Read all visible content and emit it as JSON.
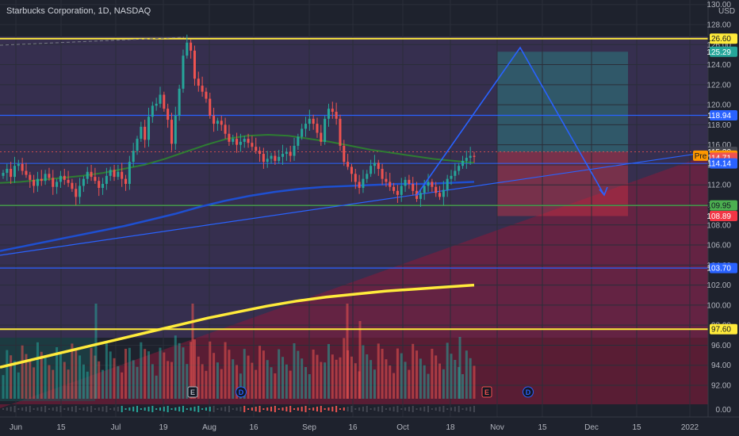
{
  "header": {
    "title": "Starbucks Corporation, 1D, NASDAQ",
    "currency": "USD"
  },
  "colors": {
    "background": "#1e222d",
    "up_candle": "#26a69a",
    "down_candle": "#ef5350",
    "ma_short": "#2e7d32",
    "ma_mid": "#1e4fd1",
    "ma_long": "#ffeb3b",
    "horizontal_blue": "#2962ff",
    "horizontal_yellow": "#ffeb3b",
    "horizontal_green": "#4caf50",
    "pattern_line": "#2962ff",
    "target_zone": "#26a69a",
    "stop_zone": "#f23645"
  },
  "chart_data": {
    "type": "candlestick",
    "symbol": "Starbucks Corporation",
    "interval": "1D",
    "exchange": "NASDAQ",
    "currency": "USD",
    "y_range": [
      90,
      130
    ],
    "x_ticks": [
      "Jun",
      "15",
      "Jul",
      "19",
      "Aug",
      "16",
      "Sep",
      "16",
      "Oct",
      "18",
      "Nov",
      "15",
      "Dec",
      "15",
      "2022"
    ],
    "y_ticks": [
      92,
      94,
      96,
      98,
      100,
      102,
      104,
      106,
      108,
      110,
      112,
      114,
      116,
      118,
      120,
      122,
      124,
      126,
      128,
      130
    ],
    "horizontal_levels": [
      {
        "value": 126.6,
        "label": "126.60",
        "color": "#ffeb3b"
      },
      {
        "value": 118.94,
        "label": "118.94",
        "color": "#2962ff"
      },
      {
        "value": 109.95,
        "label": "109.95",
        "color": "#4caf50"
      },
      {
        "value": 103.7,
        "label": "103.70",
        "color": "#2962ff"
      },
      {
        "value": 97.6,
        "label": "97.60",
        "color": "#ffeb3b"
      }
    ],
    "price_badges": [
      {
        "value": 125.29,
        "label": "125.29",
        "color": "#26a69a"
      },
      {
        "value": 115.3,
        "label": "115.30",
        "color": "#434651"
      },
      {
        "value": 114.92,
        "label": "114.92",
        "color": "#ff9800",
        "prefix": "Pre"
      },
      {
        "value": 114.71,
        "label": "114.71",
        "color": "#ef5350"
      },
      {
        "value": 114.14,
        "label": "114.14",
        "color": "#2962ff"
      },
      {
        "value": 108.89,
        "label": "108.89",
        "color": "#f23645"
      }
    ],
    "position_zone": {
      "entry": 115.3,
      "target": 125.29,
      "stop": 108.89
    },
    "pattern_points": [
      {
        "date_label": "Oct",
        "price": 110.5
      },
      {
        "date_label": "Nov",
        "price": 125.2
      },
      {
        "date_label": "Dec",
        "price": 110.8
      }
    ],
    "event_markers": [
      {
        "label": "E",
        "type": "earnings"
      },
      {
        "label": "D",
        "type": "dividend"
      },
      {
        "label": "E",
        "type": "earnings"
      },
      {
        "label": "D",
        "type": "dividend"
      }
    ],
    "oscillator_level": "0.00",
    "series": [
      {
        "name": "Price",
        "close": [
          113.2,
          113.6,
          112.8,
          113.9,
          114.1,
          113.4,
          113.0,
          112.5,
          111.9,
          112.6,
          112.4,
          113.1,
          112.7,
          111.8,
          112.3,
          112.9,
          112.5,
          112.2,
          111.6,
          110.8,
          111.9,
          112.6,
          113.3,
          112.8,
          112.4,
          111.7,
          112.1,
          112.9,
          113.5,
          112.8,
          113.3,
          112.6,
          112.1,
          114.3,
          115.4,
          116.6,
          117.8,
          116.5,
          118.8,
          119.9,
          120.1,
          121.0,
          119.6,
          118.5,
          116.1,
          118.9,
          121.6,
          124.9,
          126.2,
          125.4,
          122.6,
          121.9,
          121.3,
          120.6,
          118.9,
          118.1,
          118.4,
          118.0,
          117.1,
          116.3,
          116.6,
          116.0,
          116.3,
          116.6,
          116.2,
          115.8,
          115.4,
          115.1,
          114.3,
          114.6,
          114.9,
          114.4,
          114.8,
          115.1,
          115.3,
          114.9,
          115.9,
          116.8,
          117.6,
          118.1,
          118.6,
          118.1,
          117.2,
          116.3,
          118.6,
          119.6,
          119.3,
          118.6,
          115.9,
          114.3,
          113.8,
          113.1,
          112.3,
          111.7,
          112.6,
          113.1,
          113.9,
          114.2,
          113.6,
          112.6,
          112.3,
          111.8,
          111.4,
          111.0,
          111.9,
          112.5,
          112.1,
          111.4,
          110.6,
          111.2,
          111.9,
          112.3,
          111.8,
          111.2,
          110.8,
          111.5,
          112.6,
          112.9,
          113.4,
          113.9,
          114.4,
          114.7,
          114.9,
          114.8
        ]
      },
      {
        "name": "MA short",
        "values": [
          112.2,
          112.3,
          112.5,
          112.7,
          112.9,
          113.2,
          113.6,
          114.0,
          114.6,
          115.3,
          116.0,
          116.6,
          116.9,
          117.0,
          116.9,
          116.6,
          116.3,
          115.9,
          115.5,
          115.2,
          114.9,
          114.6,
          114.4,
          114.2
        ]
      },
      {
        "name": "MA mid",
        "values": [
          105.4,
          105.9,
          106.4,
          106.9,
          107.4,
          107.9,
          108.5,
          109.1,
          109.8,
          110.4,
          110.9,
          111.3,
          111.6,
          111.8,
          111.9,
          112.0,
          112.1,
          112.1,
          112.2,
          112.3
        ]
      },
      {
        "name": "MA long",
        "values": [
          93.8,
          94.5,
          95.2,
          95.9,
          96.6,
          97.3,
          98.0,
          98.7,
          99.3,
          99.9,
          100.4,
          100.8,
          101.1,
          101.4,
          101.6,
          101.8,
          102.0
        ]
      }
    ]
  }
}
